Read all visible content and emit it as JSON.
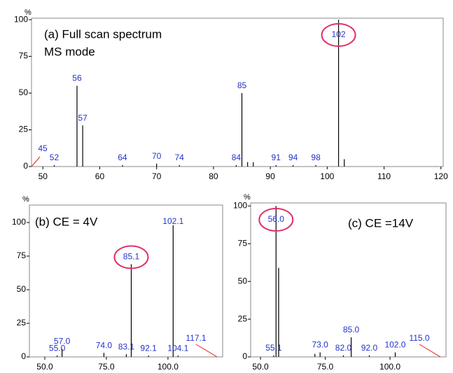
{
  "chart_data": [
    {
      "type": "stick",
      "title": [
        "(a) Full scan spectrum",
        "MS mode"
      ],
      "y_unit": "%",
      "x": [
        52,
        56,
        57,
        64,
        70,
        74,
        84,
        85,
        86,
        87,
        91,
        94,
        98,
        102,
        103
      ],
      "values": [
        1,
        55,
        28,
        1,
        2,
        1,
        1,
        50,
        3,
        3,
        1,
        1,
        1,
        100,
        5
      ],
      "peak_labels": [
        "52",
        "56",
        "57",
        "64",
        "70",
        "74",
        "84",
        "85",
        null,
        null,
        "91",
        "94",
        "98",
        "102",
        null
      ],
      "circled": 13,
      "offscale_label": "45",
      "offscale_side": "left",
      "xlim": [
        48,
        120.4
      ],
      "xticks": [
        50,
        60,
        70,
        80,
        90,
        100,
        110,
        120
      ],
      "ylim": [
        0,
        101
      ],
      "yticks": [
        0,
        25,
        50,
        75,
        100
      ],
      "color": "#000000",
      "label_color": "#2233cc",
      "highlight_color": "#e0306a"
    },
    {
      "type": "stick",
      "title": [
        "(b) CE = 4V"
      ],
      "y_unit": "%",
      "x": [
        55.0,
        57.0,
        74.0,
        83.1,
        85.1,
        92.1,
        102.1,
        104.1
      ],
      "values": [
        1,
        6,
        3,
        2,
        69,
        1,
        98,
        1
      ],
      "peak_labels": [
        "55.0",
        "57.0",
        "74.0",
        "83.1",
        "85.1",
        "92.1",
        "102.1",
        "104.1"
      ],
      "circled": 4,
      "offscale_label": "117.1",
      "offscale_side": "right",
      "xlim": [
        43.75,
        122.2
      ],
      "xticks": [
        {
          "value": 50,
          "label": "50.0"
        },
        {
          "value": 75,
          "label": "75.0"
        },
        {
          "value": 100,
          "label": "100.0"
        }
      ],
      "ylim": [
        0,
        113
      ],
      "yticks": [
        0,
        25,
        50,
        75,
        100
      ],
      "color": "#000000",
      "label_color": "#2233cc",
      "highlight_color": "#e0306a"
    },
    {
      "type": "stick",
      "title": [
        "(c) CE =14V"
      ],
      "y_unit": "%",
      "x": [
        55.1,
        56.0,
        57.0,
        71,
        73.0,
        82.0,
        85.0,
        92.0,
        102.0
      ],
      "values": [
        1,
        100,
        59,
        2,
        3,
        1,
        13,
        1,
        3
      ],
      "peak_labels": [
        "55.1",
        "56.0",
        null,
        null,
        "73.0",
        "82.0",
        "85.0",
        "92.0",
        "102.0"
      ],
      "circled": 1,
      "offscale_label": "115.0",
      "offscale_side": "right",
      "xlim": [
        46.2,
        121.6
      ],
      "xticks": [
        {
          "value": 50,
          "label": "50.0"
        },
        {
          "value": 75,
          "label": "75.0"
        },
        {
          "value": 100,
          "label": "100.0"
        }
      ],
      "ylim": [
        0,
        102
      ],
      "yticks": [
        0,
        25,
        50,
        75,
        100
      ],
      "color": "#000000",
      "label_color": "#2233cc",
      "highlight_color": "#e0306a"
    }
  ]
}
